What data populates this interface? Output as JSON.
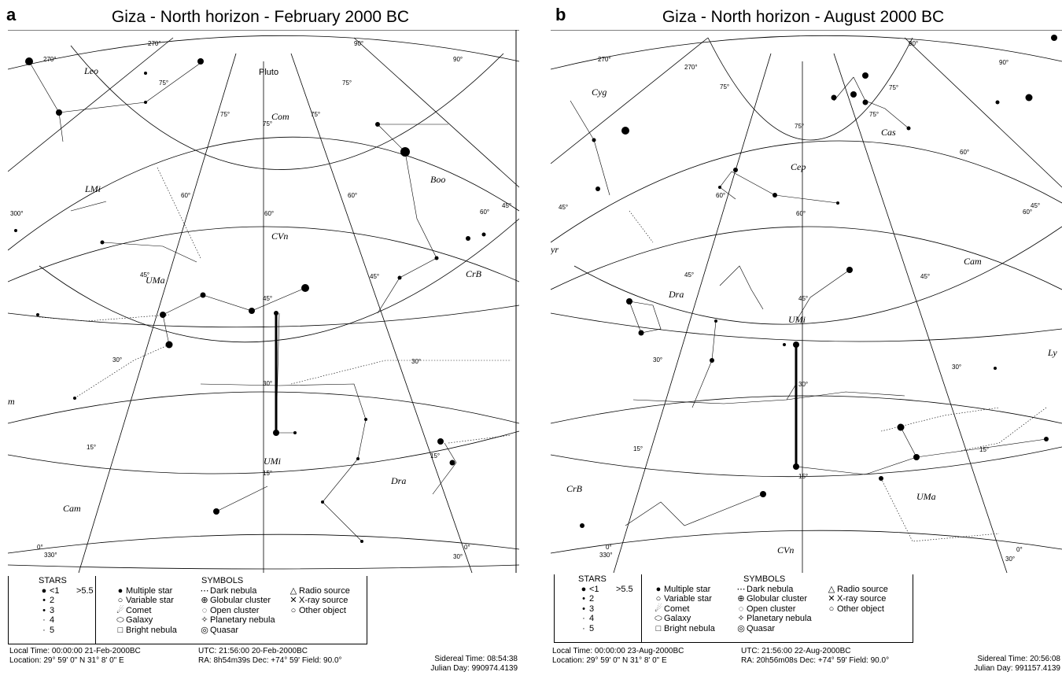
{
  "panels": [
    {
      "letter": "a",
      "title": "Giza - North horizon - February 2000 BC",
      "constellations": [
        "Leo",
        "LMi",
        "Com",
        "CVn",
        "Boo",
        "CrB",
        "UMa",
        "UMi",
        "Dra",
        "Cam",
        "Pluto",
        "m"
      ],
      "footer": {
        "local_time": "Local Time: 00:00:00 21-Feb-2000BC",
        "utc": "UTC: 21:56:00 20-Feb-2000BC",
        "sidereal": "Sidereal Time: 08:54:38",
        "location": "Location: 29° 59' 0\" N  31° 8' 0\" E",
        "ra_dec": "RA: 8h54m39s Dec: +74° 59' Field: 90.0°",
        "julian": "Julian Day: 990974.4139"
      }
    },
    {
      "letter": "b",
      "title": "Giza - North horizon - August 2000 BC",
      "constellations": [
        "Cyg",
        "Cas",
        "Cep",
        "Dra",
        "Cam",
        "UMi",
        "Ly",
        "UMa",
        "CrB",
        "CVn",
        "yr"
      ],
      "footer": {
        "local_time": "Local Time: 00:00:00 23-Aug-2000BC",
        "utc": "UTC: 21:56:00 22-Aug-2000BC",
        "sidereal": "Sidereal Time: 20:56:08",
        "location": "Location: 29° 59' 0\" N  31° 8' 0\" E",
        "ra_dec": "RA: 20h56m08s Dec: +74° 59' Field: 90.0°",
        "julian": "Julian Day: 991157.4139"
      }
    }
  ],
  "legend": {
    "stars_header": "STARS",
    "star_mags": [
      "<1",
      "2",
      "3",
      "4",
      "5"
    ],
    "star_faint": ">5.5",
    "symbols_header": "SYMBOLS",
    "symbols_col1": [
      "Multiple star",
      "Variable star",
      "Comet",
      "Galaxy",
      "Bright nebula"
    ],
    "symbols_col2": [
      "Dark nebula",
      "Globular cluster",
      "Open cluster",
      "Planetary nebula",
      "Quasar"
    ],
    "symbols_col3": [
      "Radio source",
      "X-ray source",
      "Other object"
    ]
  }
}
